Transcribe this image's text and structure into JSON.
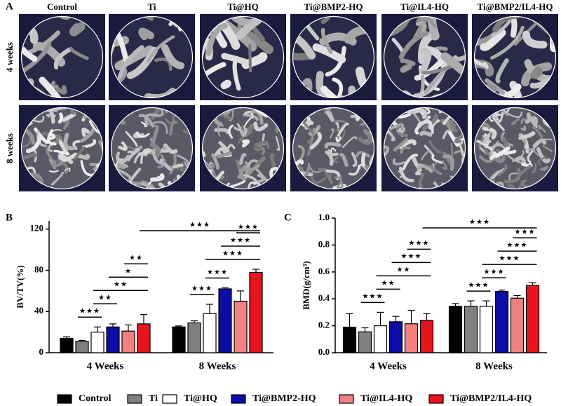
{
  "panel_a": {
    "label": "A",
    "columns": [
      "Control",
      "Ti",
      "Ti@HQ",
      "Ti@BMP2-HQ",
      "Ti@IL4-HQ",
      "Ti@BMP2/IL4-HQ"
    ],
    "rows": [
      "4 weeks",
      "8 weeks"
    ]
  },
  "chart_data": [
    {
      "type": "bar",
      "panel_label": "B",
      "y_label": "BV/TV(%)",
      "categories": [
        "4 Weeks",
        "8 Weeks"
      ],
      "ylim": [
        0,
        128
      ],
      "yticks": [
        0,
        40,
        80,
        120
      ],
      "series": [
        {
          "name": "Control",
          "color": "#000000",
          "values": [
            14,
            25
          ],
          "errors": [
            1.5,
            1
          ]
        },
        {
          "name": "Ti",
          "color": "#808080",
          "values": [
            11,
            29
          ],
          "errors": [
            1,
            2
          ]
        },
        {
          "name": "Ti@HQ",
          "color": "#ffffff",
          "values": [
            20,
            38
          ],
          "errors": [
            5,
            9
          ]
        },
        {
          "name": "Ti@BMP2-HQ",
          "color": "#0c0ca8",
          "values": [
            25,
            62
          ],
          "errors": [
            3,
            1
          ]
        },
        {
          "name": "Ti@IL4-HQ",
          "color": "#f28080",
          "values": [
            21,
            50
          ],
          "errors": [
            6,
            10
          ]
        },
        {
          "name": "Ti@BMP2/IL4-HQ",
          "color": "#e8141b",
          "values": [
            28,
            78
          ],
          "errors": [
            9,
            3
          ]
        }
      ],
      "comparisons": [
        {
          "label": "★★★",
          "from": [
            0,
            1
          ],
          "to": [
            0,
            2
          ]
        },
        {
          "label": "★★",
          "from": [
            0,
            2
          ],
          "to": [
            0,
            3
          ]
        },
        {
          "label": "★★",
          "from": [
            0,
            2
          ],
          "to": [
            0,
            5
          ]
        },
        {
          "label": "★",
          "from": [
            0,
            3
          ],
          "to": [
            0,
            5
          ]
        },
        {
          "label": "★★",
          "from": [
            0,
            4
          ],
          "to": [
            0,
            5
          ]
        },
        {
          "label": "★★★",
          "from": [
            1,
            1
          ],
          "to": [
            1,
            2
          ]
        },
        {
          "label": "★★★",
          "from": [
            1,
            2
          ],
          "to": [
            1,
            3
          ]
        },
        {
          "label": "★★★",
          "from": [
            1,
            2
          ],
          "to": [
            1,
            5
          ]
        },
        {
          "label": "★★★",
          "from": [
            1,
            3
          ],
          "to": [
            1,
            5
          ]
        },
        {
          "label": "★★★",
          "from": [
            1,
            4
          ],
          "to": [
            1,
            5
          ]
        },
        {
          "label": "★★★",
          "from": [
            0,
            5
          ],
          "to": [
            1,
            5
          ]
        }
      ]
    },
    {
      "type": "bar",
      "panel_label": "C",
      "y_label": "BMD(g/cm³)",
      "categories": [
        "4 Weeks",
        "8 Weeks"
      ],
      "ylim": [
        0,
        1
      ],
      "yticks": [
        {
          "value": 0,
          "label": "0.0"
        },
        0.2,
        0.4,
        0.6,
        0.8,
        {
          "value": 1,
          "label": "1.0"
        }
      ],
      "series": [
        {
          "name": "Control",
          "color": "#000000",
          "values": [
            0.19,
            0.345
          ],
          "errors": [
            0.1,
            0.02
          ]
        },
        {
          "name": "Ti",
          "color": "#808080",
          "values": [
            0.155,
            0.345
          ],
          "errors": [
            0.03,
            0.04
          ]
        },
        {
          "name": "Ti@HQ",
          "color": "#ffffff",
          "values": [
            0.2,
            0.345
          ],
          "errors": [
            0.1,
            0.04
          ]
        },
        {
          "name": "Ti@BMP2-HQ",
          "color": "#0c0ca8",
          "values": [
            0.23,
            0.455
          ],
          "errors": [
            0.04,
            0.01
          ]
        },
        {
          "name": "Ti@IL4-HQ",
          "color": "#f28080",
          "values": [
            0.215,
            0.405
          ],
          "errors": [
            0.1,
            0.02
          ]
        },
        {
          "name": "Ti@BMP2/IL4-HQ",
          "color": "#e8141b",
          "values": [
            0.24,
            0.5
          ],
          "errors": [
            0.05,
            0.02
          ]
        }
      ],
      "comparisons": [
        {
          "label": "★★★",
          "from": [
            0,
            1
          ],
          "to": [
            0,
            2
          ]
        },
        {
          "label": "★★",
          "from": [
            0,
            2
          ],
          "to": [
            0,
            3
          ]
        },
        {
          "label": "★★",
          "from": [
            0,
            2
          ],
          "to": [
            0,
            5
          ]
        },
        {
          "label": "★★★",
          "from": [
            0,
            3
          ],
          "to": [
            0,
            5
          ]
        },
        {
          "label": "★★★",
          "from": [
            0,
            4
          ],
          "to": [
            0,
            5
          ]
        },
        {
          "label": "★★★",
          "from": [
            1,
            1
          ],
          "to": [
            1,
            2
          ]
        },
        {
          "label": "★★★",
          "from": [
            1,
            2
          ],
          "to": [
            1,
            3
          ]
        },
        {
          "label": "★★★",
          "from": [
            1,
            2
          ],
          "to": [
            1,
            5
          ]
        },
        {
          "label": "★★★",
          "from": [
            1,
            3
          ],
          "to": [
            1,
            5
          ]
        },
        {
          "label": "★★★",
          "from": [
            1,
            4
          ],
          "to": [
            1,
            5
          ]
        },
        {
          "label": "★★★",
          "from": [
            0,
            5
          ],
          "to": [
            1,
            5
          ]
        }
      ]
    }
  ]
}
